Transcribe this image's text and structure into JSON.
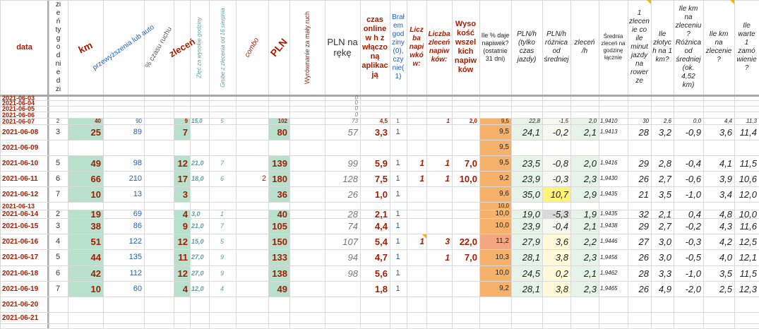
{
  "headers": {
    "date": "data",
    "day_of_week": "Dzień tygodnie dzieli",
    "km": "km",
    "overtime_or_auto": "przewyższenia lub auto",
    "traffic_time": "% czasu ruchu",
    "orders": "zleceń",
    "high_hours_orders": "Zlęć za wysokie godziny",
    "from_aug16": "Grube z zlecenia od 16 sierpnia",
    "combo": "combo",
    "pln": "PLN",
    "equalization": "Wyrównanie za mały ruch",
    "pln_net": "PLN na rękę",
    "online_time": "czas online w h z włączoną aplikacją",
    "took_hours": "Brałem godziny (0), czy nie(1)",
    "tip_count": "Liczba napiwków:",
    "tip_orders": "Liczba zleceń napiwków:",
    "tip_amount": "Wysokość wszelkich napiwków",
    "tip_pct": "Ile % daje napiwek? (ostatnie 31 dni)",
    "pln_per_h": "PLN/h (tylko czas jazdy)",
    "pln_diff": "PLN/h różnica od średniej",
    "orders_per_h": "zleceń /h",
    "avg_orders_daily": "Średnia zleceń na godzinę łącznie",
    "min_per_order": "1 zlecenie co ile minut jazdy na rowerze",
    "pln_per_km": "Ile złotych na 1 km?",
    "km_diff": "Ile km na zleceniu? Różnica od średniej (ok. 4,52 km)",
    "km_per_order": "Ile km na zlecenie?",
    "value_per_order": "Ile warte 1 zamówienie?",
    "km_per_h": "Ile km na h?"
  },
  "rows": [
    {
      "date": "2021-06-03",
      "empty": true,
      "pn": "0"
    },
    {
      "date": "2021-06-04",
      "empty": true,
      "pn": "0"
    },
    {
      "date": "2021-06-05",
      "empty": true,
      "pn": "0"
    },
    {
      "date": "2021-06-06",
      "empty": true,
      "pn": "0"
    },
    {
      "date": "2021-06-07",
      "dow": "2",
      "km": "40",
      "tr": "90",
      "zl": "9",
      "hh": "15,0",
      "ag": "5",
      "cb": "",
      "pln": "102",
      "pn": "73",
      "on": "4,5",
      "bg": "1",
      "tc": "",
      "to": "1",
      "ta": "2,0",
      "tp": "9,5",
      "ph": "22,8",
      "pd": "-1,5",
      "zh": "2,0",
      "av": "1,9410",
      "mn": "30",
      "pk": "2,6",
      "kd": "0,0",
      "ko": "4,4",
      "vo": "11,3",
      "kh": "9"
    },
    {
      "date": "2021-06-08",
      "dow": "3",
      "km": "25",
      "tr": "89",
      "zl": "7",
      "hh": "",
      "ag": "",
      "cb": "",
      "pln": "80",
      "pn": "57",
      "on": "3,3",
      "bg": "1",
      "tc": "",
      "to": "",
      "ta": "",
      "tp": "9,5",
      "ph": "24,1",
      "pd": "-0,2",
      "zh": "2,1",
      "av": "1,9413",
      "mn": "28",
      "pk": "3,2",
      "kd": "-0,9",
      "ko": "3,6",
      "vo": "11,4",
      "kh": "8"
    },
    {
      "date": "2021-06-09",
      "empty": true,
      "tp": "9,5"
    },
    {
      "date": "2021-06-10",
      "dow": "5",
      "km": "49",
      "tr": "98",
      "zl": "12",
      "hh": "21,0",
      "ag": "7",
      "cb": "",
      "pln": "139",
      "pn": "99",
      "on": "5,9",
      "bg": "1",
      "tc": "1",
      "to": "1",
      "ta": "7,0",
      "tp": "9,5",
      "ph": "23,5",
      "pd": "-0,8",
      "zh": "2,0",
      "av": "1,9416",
      "mn": "29",
      "pk": "2,8",
      "kd": "-0,4",
      "ko": "4,1",
      "vo": "11,5",
      "kh": "8"
    },
    {
      "date": "2021-06-11",
      "dow": "6",
      "km": "66",
      "tr": "210",
      "zl": "17",
      "hh": "18,0",
      "ag": "6",
      "cb": "2",
      "pln": "180",
      "pn": "128",
      "on": "7,5",
      "bg": "1",
      "tc": "1",
      "to": "1",
      "ta": "10,0",
      "tp": "9,2",
      "ph": "23,9",
      "pd": "-0,3",
      "zh": "2,3",
      "av": "1,9430",
      "mn": "26",
      "pk": "2,7",
      "kd": "-0,6",
      "ko": "3,9",
      "vo": "10,6",
      "kh": "9"
    },
    {
      "date": "2021-06-12",
      "dow": "7",
      "km": "10",
      "tr": "13",
      "zl": "3",
      "hh": "",
      "ag": "",
      "cb": "",
      "pln": "36",
      "pn": "26",
      "on": "1,0",
      "bg": "1",
      "tc": "",
      "to": "",
      "ta": "",
      "tp": "9,6",
      "ph": "35,0",
      "pd": "10,7",
      "zh": "2,9",
      "av": "1,9435",
      "mn": "21",
      "pk": "3,5",
      "kd": "-1,0",
      "ko": "3,4",
      "vo": "12,0",
      "kh": "10"
    },
    {
      "date": "2021-06-13",
      "empty": true,
      "tp": "10,0"
    },
    {
      "date": "2021-06-14",
      "dow": "2",
      "km": "19",
      "tr": "69",
      "zl": "4",
      "hh": "3,0",
      "ag": "1",
      "cb": "",
      "pln": "40",
      "pn": "28",
      "on": "2,1",
      "bg": "1",
      "tc": "",
      "to": "",
      "ta": "",
      "tp": "10,0",
      "ph": "19,0",
      "pd": "-5,3",
      "zh": "1,9",
      "av": "1,9435",
      "mn": "32",
      "pk": "2,1",
      "kd": "0,4",
      "ko": "4,8",
      "vo": "10,0",
      "kh": "9"
    },
    {
      "date": "2021-06-15",
      "dow": "3",
      "km": "38",
      "tr": "86",
      "zl": "9",
      "hh": "21,0",
      "ag": "7",
      "cb": "",
      "pln": "105",
      "pn": "74",
      "on": "4,4",
      "bg": "1",
      "tc": "",
      "to": "",
      "ta": "",
      "tp": "10,0",
      "ph": "23,9",
      "pd": "-0,4",
      "zh": "2,1",
      "av": "1,9438",
      "mn": "29",
      "pk": "2,7",
      "kd": "-0,2",
      "ko": "4,3",
      "vo": "11,6",
      "kh": "9"
    },
    {
      "date": "2021-06-16",
      "dow": "4",
      "km": "51",
      "tr": "122",
      "zl": "12",
      "hh": "15,0",
      "ag": "5",
      "cb": "",
      "pln": "150",
      "pn": "107",
      "on": "5,4",
      "bg": "1",
      "tc": "1",
      "to": "3",
      "ta": "22,0",
      "tp": "11,2",
      "ph": "27,9",
      "pd": "3,6",
      "zh": "2,2",
      "av": "1,9446",
      "mn": "27",
      "pk": "3,0",
      "kd": "-0,3",
      "ko": "4,2",
      "vo": "12,5",
      "kh": "9"
    },
    {
      "date": "2021-06-17",
      "dow": "5",
      "km": "44",
      "tr": "135",
      "zl": "11",
      "hh": "27,0",
      "ag": "9",
      "cb": "",
      "pln": "133",
      "pn": "94",
      "on": "4,7",
      "bg": "1",
      "tc": "",
      "to": "1",
      "ta": "7,0",
      "tp": "10,3",
      "ph": "28,1",
      "pd": "3,8",
      "zh": "2,3",
      "av": "1,9456",
      "mn": "26",
      "pk": "3,0",
      "kd": "-0,5",
      "ko": "4,0",
      "vo": "12,1",
      "kh": "9"
    },
    {
      "date": "2021-06-18",
      "dow": "6",
      "km": "42",
      "tr": "112",
      "zl": "12",
      "hh": "27,0",
      "ag": "9",
      "cb": "",
      "pln": "138",
      "pn": "98",
      "on": "5,6",
      "bg": "1",
      "tc": "",
      "to": "",
      "ta": "",
      "tp": "10,0",
      "ph": "24,5",
      "pd": "0,2",
      "zh": "2,1",
      "av": "1,9462",
      "mn": "28",
      "pk": "3,3",
      "kd": "-1,0",
      "ko": "3,5",
      "vo": "11,5",
      "kh": "8"
    },
    {
      "date": "2021-06-19",
      "dow": "7",
      "km": "10",
      "tr": "60",
      "zl": "4",
      "hh": "12,0",
      "ag": "4",
      "cb": "",
      "pln": "49",
      "pn": "",
      "on": "1,8",
      "bg": "1",
      "tc": "",
      "to": "",
      "ta": "",
      "tp": "9,2",
      "ph": "28,1",
      "pd": "3,8",
      "zh": "2,3",
      "av": "1,9465",
      "mn": "26",
      "pk": "4,9",
      "kd": "-2,0",
      "ko": "2,5",
      "vo": "12,3",
      "kh": "6"
    },
    {
      "date": "2021-06-20",
      "empty": true
    },
    {
      "date": "2021-06-21",
      "empty": true
    }
  ],
  "colors": {
    "green_fill": "#b7e1cd",
    "orange_fill": "#f6b26b",
    "light_yellow": "#fef9d6",
    "pale_green": "#e5f3e9",
    "bright_yellow": "#fff27a",
    "gray_fill": "#d9d9d9",
    "salmon_fill": "#f4a582",
    "dark_red": "#a61c00",
    "blue": "#1a5fc2",
    "teal": "#5a9e9e"
  }
}
